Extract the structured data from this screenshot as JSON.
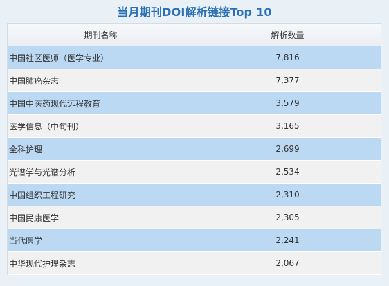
{
  "title": "当月期刊DOI解析链接Top 10",
  "table": {
    "headers": {
      "name": "期刊名称",
      "count": "解析数量"
    },
    "rows": [
      {
        "name": "中国社区医师（医学专业）",
        "count": "7,816"
      },
      {
        "name": "中国肺癌杂志",
        "count": "7,377"
      },
      {
        "name": "中国中医药现代远程教育",
        "count": "3,579"
      },
      {
        "name": "医学信息（中旬刊）",
        "count": "3,165"
      },
      {
        "name": "全科护理",
        "count": "2,699"
      },
      {
        "name": "光谱学与光谱分析",
        "count": "2,534"
      },
      {
        "name": "中国组织工程研究",
        "count": "2,310"
      },
      {
        "name": "中国民康医学",
        "count": "2,305"
      },
      {
        "name": "当代医学",
        "count": "2,241"
      },
      {
        "name": "中华现代护理杂志",
        "count": "2,067"
      }
    ]
  },
  "colors": {
    "title": "#2a6fb5",
    "row_highlight": "#bcd9f3",
    "row_alt": "#f1f1f1",
    "page_bg": "#e9f1f7"
  }
}
